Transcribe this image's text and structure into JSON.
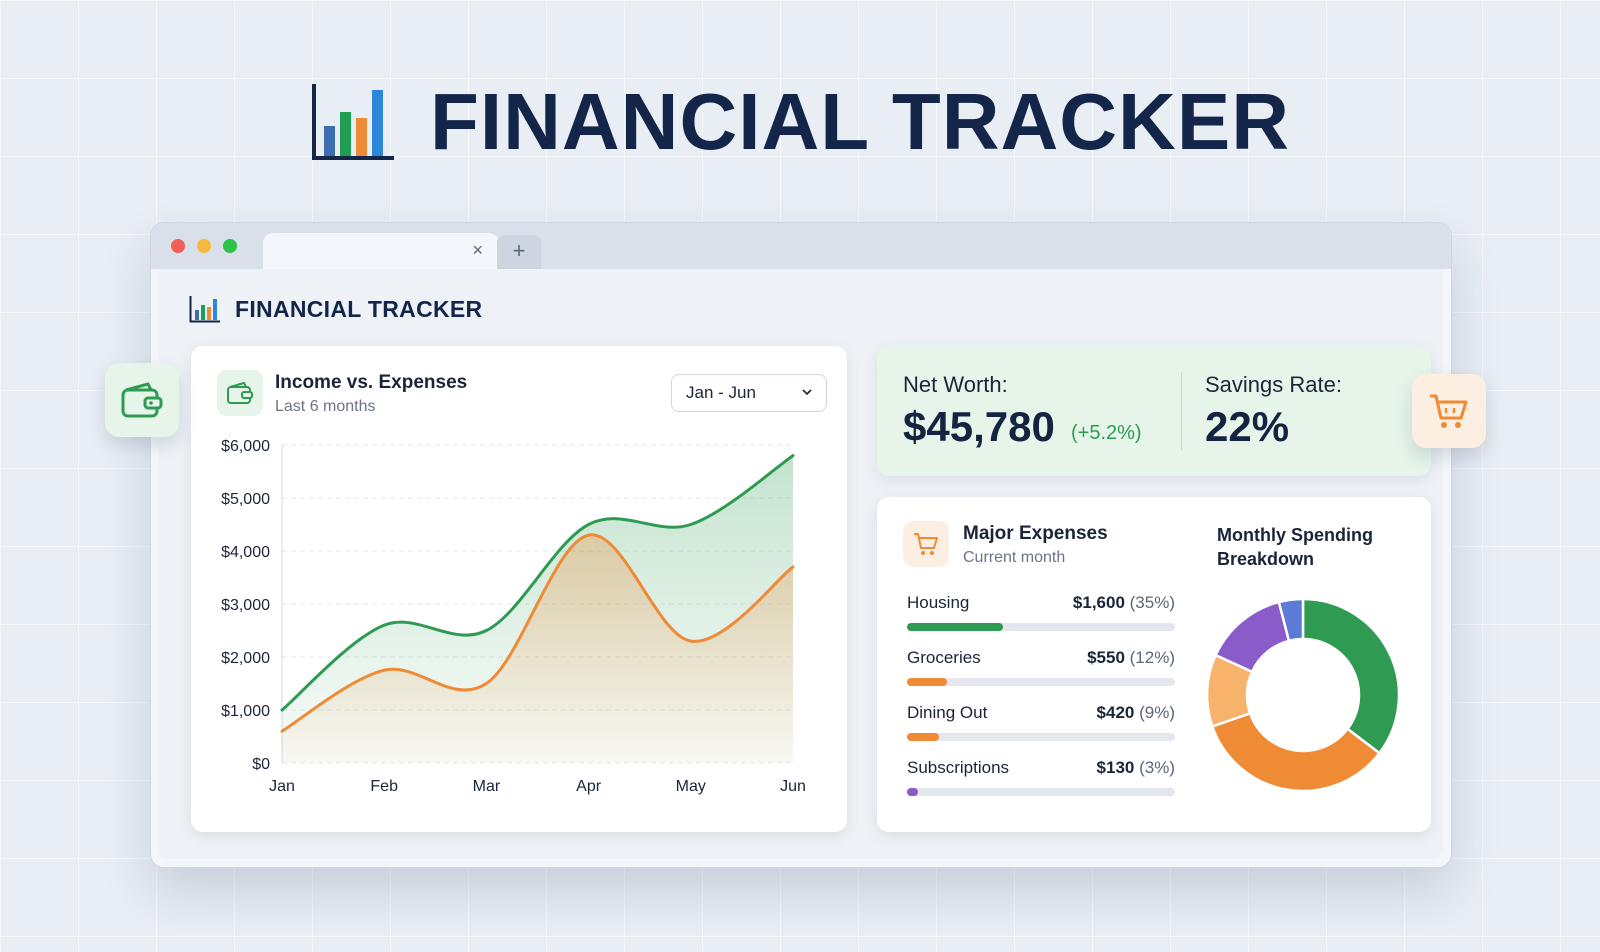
{
  "hero": {
    "title": "FINANCIAL TRACKER",
    "logo_icon": "bar-chart-icon"
  },
  "browser": {
    "tab_close": "×",
    "new_tab": "+"
  },
  "app": {
    "title": "FINANCIAL TRACKER",
    "logo_icon": "bar-chart-icon"
  },
  "income_chart": {
    "title": "Income vs. Expenses",
    "subtitle": "Last 6 months",
    "icon": "wallet-icon",
    "range_select": {
      "selected": "Jan - Jun"
    }
  },
  "chart_data": {
    "type": "area",
    "categories": [
      "Jan",
      "Feb",
      "Mar",
      "Apr",
      "May",
      "Jun"
    ],
    "series": [
      {
        "values": [
          1000,
          2600,
          2500,
          4500,
          4500,
          5800
        ],
        "color": "#2e9a52"
      },
      {
        "values": [
          600,
          1750,
          1500,
          4300,
          2300,
          3700
        ],
        "color": "#ef8a35"
      }
    ],
    "ylim": [
      0,
      6000
    ],
    "yticks": [
      "$0",
      "$1,000",
      "$2,000",
      "$3,000",
      "$4,000",
      "$5,000",
      "$6,000"
    ],
    "grid": true
  },
  "net_worth": {
    "label": "Net Worth:",
    "value": "$45,780",
    "change": "(+5.2%)"
  },
  "savings": {
    "label": "Savings Rate:",
    "value": "22%"
  },
  "expenses": {
    "title": "Major Expenses",
    "subtitle": "Current month",
    "icon": "cart-icon",
    "items": [
      {
        "name": "Housing",
        "amount": "$1,600",
        "pct": "(35%)",
        "fill": 0.36,
        "color": "#2e9a52"
      },
      {
        "name": "Groceries",
        "amount": "$550",
        "pct": "(12%)",
        "fill": 0.15,
        "color": "#ef8a35"
      },
      {
        "name": "Dining Out",
        "amount": "$420",
        "pct": "(9%)",
        "fill": 0.12,
        "color": "#ef8a35"
      },
      {
        "name": "Subscriptions",
        "amount": "$130",
        "pct": "(3%)",
        "fill": 0.04,
        "color": "#8a5cc9"
      }
    ]
  },
  "breakdown": {
    "title": "Monthly Spending Breakdown",
    "segments": [
      {
        "value": 35,
        "color": "#2e9a52"
      },
      {
        "value": 34,
        "color": "#ef8a35"
      },
      {
        "value": 12,
        "color": "#f7b36b"
      },
      {
        "value": 14,
        "color": "#8a5cc9"
      },
      {
        "value": 4,
        "color": "#5b7bd5"
      }
    ]
  },
  "float_icons": {
    "left": "wallet-icon",
    "right": "cart-icon"
  },
  "colors": {
    "navy": "#13264a",
    "green": "#2e9a52",
    "orange": "#ef8a35",
    "purple": "#8a5cc9",
    "blue": "#5b7bd5"
  }
}
